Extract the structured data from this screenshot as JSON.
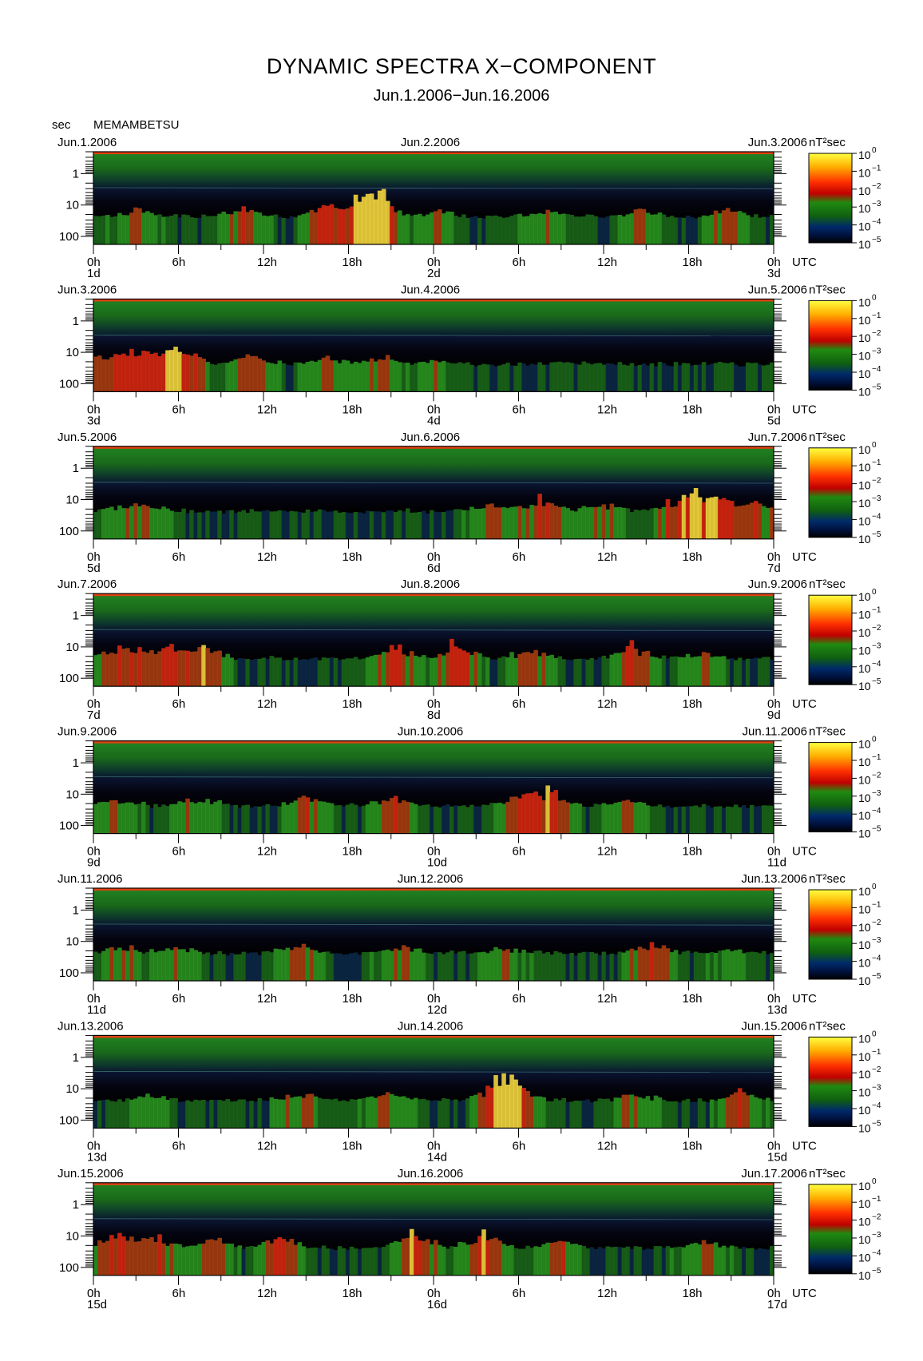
{
  "title": "DYNAMIC SPECTRA X−COMPONENT",
  "subtitle": "Jun.1.2006−Jun.16.2006",
  "station": "MEMAMBETSU",
  "y_unit": "sec",
  "cbar_unit": "nT²sec",
  "chart_data": {
    "type": "heatmap",
    "title": "DYNAMIC SPECTRA X−COMPONENT",
    "subtitle": "Jun.1.2006−Jun.16.2006",
    "ylabel": "sec",
    "y_scale": "log",
    "y_inverted": true,
    "y_range_sec": [
      0.2,
      180
    ],
    "y_tick_labels": [
      "1",
      "10",
      "100"
    ],
    "x_tick_labels": [
      "0h",
      "6h",
      "12h",
      "18h",
      "0h",
      "6h",
      "12h",
      "18h",
      "0h"
    ],
    "x_extra_label": "UTC",
    "colorbar": {
      "unit": "nT²sec",
      "exponents": [
        0,
        -1,
        -2,
        -3,
        -4,
        -5
      ],
      "colors": [
        "#ffff30",
        "#ffa010",
        "#ff2000",
        "#c00000",
        "#208000",
        "#006000",
        "#002060",
        "#000000"
      ]
    },
    "panels": [
      {
        "left_date": "Jun.1.2006",
        "mid_date": "Jun.2.2006",
        "right_date": "Jun.3.2006",
        "day_labels": [
          "1d",
          "2d",
          "3d"
        ],
        "peaks": [
          [
            6,
            0.45
          ],
          [
            22,
            0.6
          ],
          [
            34,
            0.8
          ],
          [
            42,
            0.7
          ],
          [
            40,
            0.9
          ],
          [
            50,
            0.4
          ],
          [
            66,
            0.4
          ],
          [
            80,
            0.5
          ],
          [
            93,
            0.55
          ]
        ]
      },
      {
        "left_date": "Jun.3.2006",
        "mid_date": "Jun.4.2006",
        "right_date": "Jun.5.2006",
        "day_labels": [
          "3d",
          "4d",
          "5d"
        ],
        "peaks": [
          [
            3,
            0.7
          ],
          [
            8,
            0.8
          ],
          [
            13,
            0.9
          ],
          [
            23,
            0.5
          ],
          [
            34,
            0.45
          ],
          [
            42,
            0.5
          ],
          [
            50,
            0.3
          ]
        ]
      },
      {
        "left_date": "Jun.5.2006",
        "mid_date": "Jun.6.2006",
        "right_date": "Jun.7.2006",
        "day_labels": [
          "5d",
          "6d",
          "7d"
        ],
        "peaks": [
          [
            3,
            0.4
          ],
          [
            8,
            0.35
          ],
          [
            58,
            0.6
          ],
          [
            66,
            0.8
          ],
          [
            75,
            0.5
          ],
          [
            86,
            0.8
          ],
          [
            91,
            0.9
          ],
          [
            97,
            0.6
          ]
        ]
      },
      {
        "left_date": "Jun.7.2006",
        "mid_date": "Jun.8.2006",
        "right_date": "Jun.9.2006",
        "day_labels": [
          "7d",
          "8d",
          "9d"
        ],
        "peaks": [
          [
            4,
            0.8
          ],
          [
            10,
            0.75
          ],
          [
            16,
            0.8
          ],
          [
            44,
            0.75
          ],
          [
            53,
            0.8
          ],
          [
            64,
            0.6
          ],
          [
            79,
            0.7
          ],
          [
            89,
            0.45
          ]
        ]
      },
      {
        "left_date": "Jun.9.2006",
        "mid_date": "Jun.10.2006",
        "right_date": "Jun.11.2006",
        "day_labels": [
          "9d",
          "10d",
          "11d"
        ],
        "peaks": [
          [
            3,
            0.5
          ],
          [
            15,
            0.5
          ],
          [
            31,
            0.55
          ],
          [
            44,
            0.6
          ],
          [
            62,
            0.7
          ],
          [
            67,
            0.8
          ],
          [
            78,
            0.4
          ]
        ]
      },
      {
        "left_date": "Jun.11.2006",
        "mid_date": "Jun.12.2006",
        "right_date": "Jun.13.2006",
        "day_labels": [
          "11d",
          "12d",
          "13d"
        ],
        "peaks": [
          [
            4,
            0.45
          ],
          [
            12,
            0.4
          ],
          [
            30,
            0.55
          ],
          [
            45,
            0.6
          ],
          [
            60,
            0.4
          ],
          [
            82,
            0.7
          ],
          [
            93,
            0.3
          ]
        ]
      },
      {
        "left_date": "Jun.13.2006",
        "mid_date": "Jun.14.2006",
        "right_date": "Jun.15.2006",
        "day_labels": [
          "13d",
          "14d",
          "15d"
        ],
        "peaks": [
          [
            8,
            0.4
          ],
          [
            30,
            0.45
          ],
          [
            43,
            0.5
          ],
          [
            59,
            1.0
          ],
          [
            62,
            0.8
          ],
          [
            79,
            0.45
          ],
          [
            95,
            0.6
          ]
        ]
      },
      {
        "left_date": "Jun.15.2006",
        "mid_date": "Jun.16.2006",
        "right_date": "Jun.17.2006",
        "day_labels": [
          "15d",
          "16d",
          "17d"
        ],
        "peaks": [
          [
            3,
            0.8
          ],
          [
            9,
            0.7
          ],
          [
            17,
            0.6
          ],
          [
            27,
            0.7
          ],
          [
            47,
            0.8
          ],
          [
            57,
            0.8
          ],
          [
            68,
            0.6
          ],
          [
            89,
            0.5
          ]
        ]
      }
    ]
  }
}
